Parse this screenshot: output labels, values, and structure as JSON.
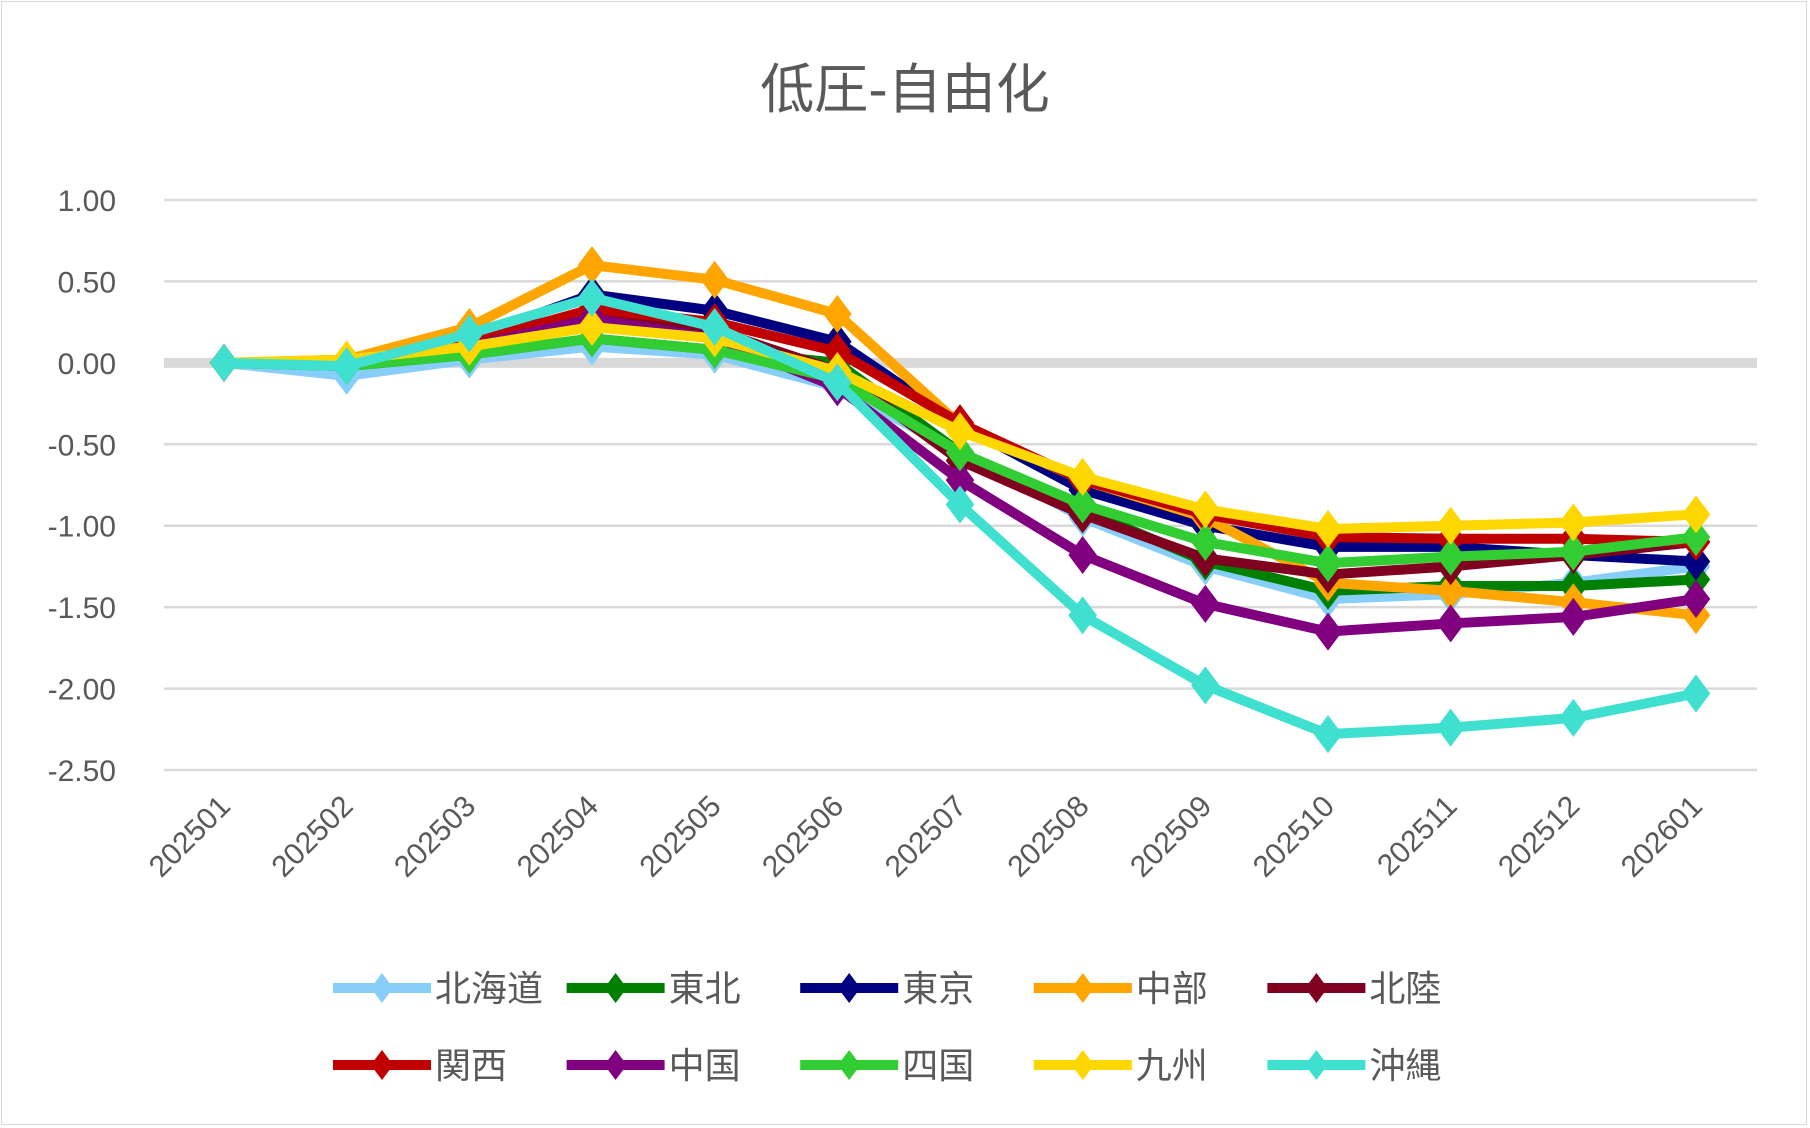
{
  "chart_data": {
    "type": "line",
    "title": "低圧-自由化",
    "xlabel": "",
    "ylabel": "",
    "ylim": [
      -2.5,
      1.0
    ],
    "yticks": [
      "1.00",
      "0.50",
      "0.00",
      "-0.50",
      "-1.00",
      "-1.50",
      "-2.00",
      "-2.50"
    ],
    "ytick_values": [
      1.0,
      0.5,
      0.0,
      -0.5,
      -1.0,
      -1.5,
      -2.0,
      -2.5
    ],
    "grid": true,
    "legend_position": "bottom",
    "categories": [
      "202501",
      "202502",
      "202503",
      "202504",
      "202505",
      "202506",
      "202507",
      "202508",
      "202509",
      "202510",
      "202511",
      "202512",
      "202601"
    ],
    "series": [
      {
        "name": "北海道",
        "color": "#87cefa",
        "values": [
          0,
          -0.08,
          0.02,
          0.1,
          0.05,
          -0.15,
          -0.55,
          -0.95,
          -1.25,
          -1.45,
          -1.42,
          -1.35,
          -1.25
        ]
      },
      {
        "name": "東北",
        "color": "#008000",
        "values": [
          0,
          -0.02,
          0.05,
          0.15,
          0.08,
          0.0,
          -0.55,
          -0.9,
          -1.22,
          -1.4,
          -1.37,
          -1.37,
          -1.33
        ]
      },
      {
        "name": "東京",
        "color": "#000080",
        "values": [
          0,
          0.0,
          0.15,
          0.42,
          0.32,
          0.13,
          -0.38,
          -0.78,
          -1.0,
          -1.13,
          -1.13,
          -1.18,
          -1.22
        ]
      },
      {
        "name": "中部",
        "color": "#ffa500",
        "values": [
          0,
          0.02,
          0.22,
          0.6,
          0.51,
          0.3,
          -0.38,
          -0.72,
          -0.95,
          -1.35,
          -1.4,
          -1.47,
          -1.55
        ]
      },
      {
        "name": "北陸",
        "color": "#800020",
        "values": [
          0,
          0.0,
          0.1,
          0.3,
          0.2,
          -0.05,
          -0.6,
          -0.93,
          -1.2,
          -1.3,
          -1.25,
          -1.18,
          -1.1
        ]
      },
      {
        "name": "関西",
        "color": "#c00000",
        "values": [
          0,
          0.0,
          0.12,
          0.33,
          0.25,
          0.07,
          -0.37,
          -0.72,
          -0.93,
          -1.07,
          -1.08,
          -1.08,
          -1.1
        ]
      },
      {
        "name": "中国",
        "color": "#800080",
        "values": [
          0,
          0.0,
          0.1,
          0.27,
          0.15,
          -0.15,
          -0.72,
          -1.18,
          -1.48,
          -1.65,
          -1.6,
          -1.56,
          -1.45
        ]
      },
      {
        "name": "四国",
        "color": "#32cd32",
        "values": [
          0,
          -0.02,
          0.05,
          0.15,
          0.08,
          -0.1,
          -0.55,
          -0.87,
          -1.1,
          -1.23,
          -1.19,
          -1.16,
          -1.07
        ]
      },
      {
        "name": "九州",
        "color": "#ffd700",
        "values": [
          0,
          0.02,
          0.1,
          0.22,
          0.15,
          -0.05,
          -0.42,
          -0.7,
          -0.9,
          -1.02,
          -1.0,
          -0.98,
          -0.93
        ]
      },
      {
        "name": "沖縄",
        "color": "#40e0d0",
        "values": [
          0,
          -0.02,
          0.18,
          0.4,
          0.22,
          -0.12,
          -0.87,
          -1.55,
          -1.98,
          -2.28,
          -2.24,
          -2.18,
          -2.03
        ]
      }
    ]
  }
}
